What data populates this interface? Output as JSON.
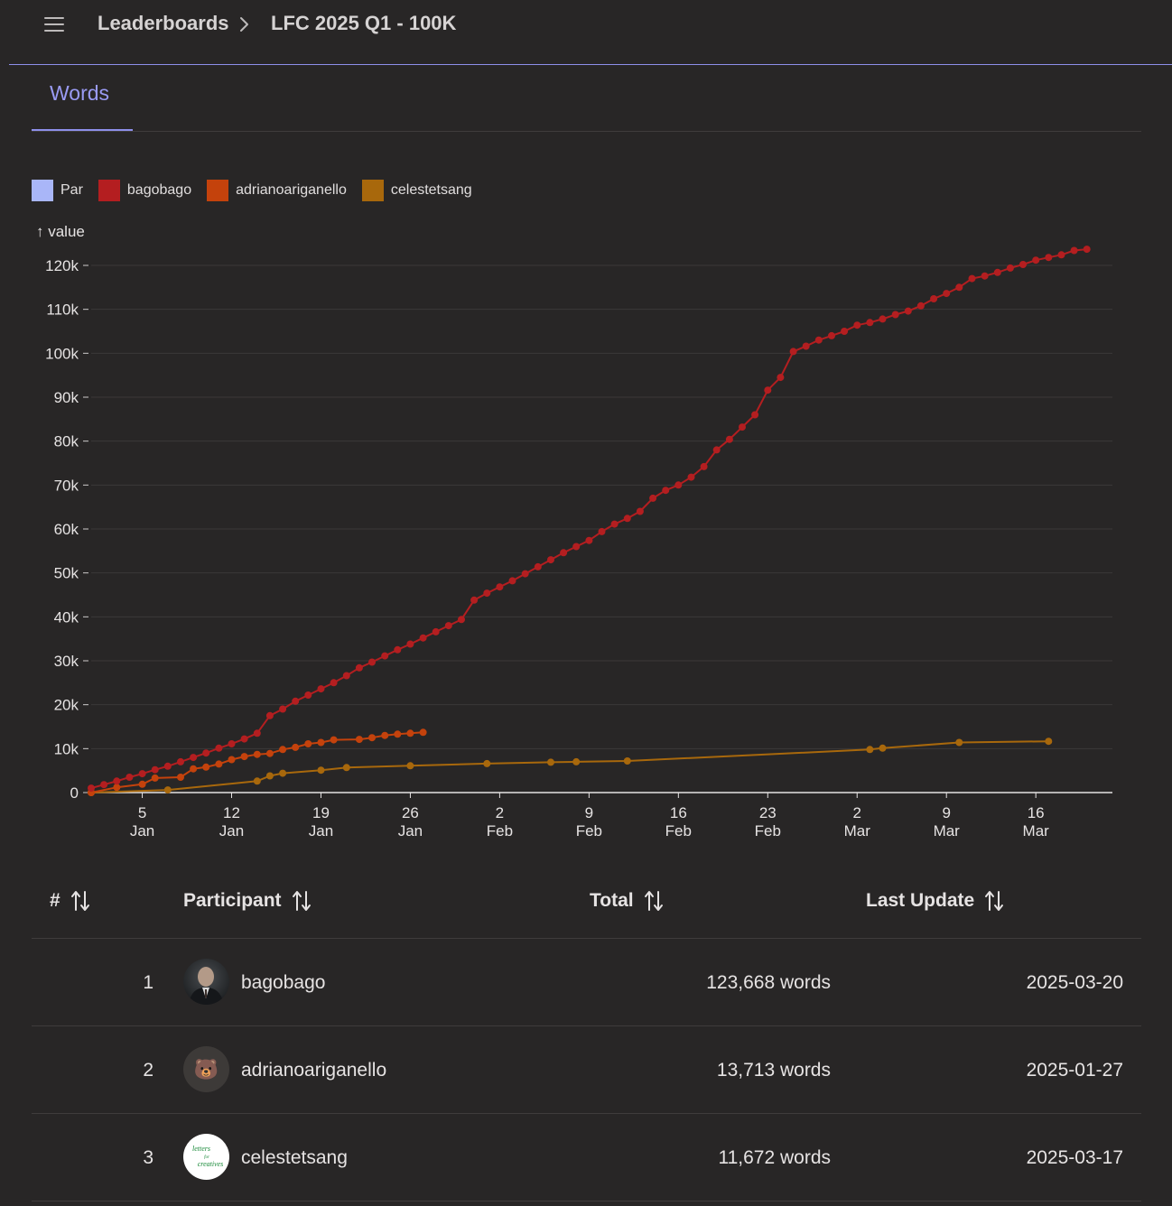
{
  "breadcrumb": {
    "root": "Leaderboards",
    "current": "LFC 2025 Q1 - 100K"
  },
  "tabs": [
    {
      "label": "Words",
      "active": true
    }
  ],
  "colors": {
    "accent": "#8e8fea",
    "par": "#a9b6f8",
    "bagobago": "#b41e20",
    "adrianoariganello": "#c4420c",
    "celestetsang": "#a8680c"
  },
  "legend": [
    {
      "label": "Par",
      "color": "#a9b6f8"
    },
    {
      "label": "bagobago",
      "color": "#b41e20"
    },
    {
      "label": "adrianoariganello",
      "color": "#c4420c"
    },
    {
      "label": "celestetsang",
      "color": "#a8680c"
    }
  ],
  "chart_data": {
    "type": "line",
    "ylabel": "↑ value",
    "ylim": [
      0,
      120000
    ],
    "yticks": [
      0,
      10000,
      20000,
      30000,
      40000,
      50000,
      60000,
      70000,
      80000,
      90000,
      100000,
      110000,
      120000
    ],
    "ytick_labels": [
      "0",
      "10k",
      "20k",
      "30k",
      "40k",
      "50k",
      "60k",
      "70k",
      "80k",
      "90k",
      "100k",
      "110k",
      "120k"
    ],
    "xlim": [
      "2025-01-01",
      "2025-03-22"
    ],
    "xticks": [
      {
        "date": "2025-01-05",
        "day": "5",
        "month": "Jan"
      },
      {
        "date": "2025-01-12",
        "day": "12",
        "month": "Jan"
      },
      {
        "date": "2025-01-19",
        "day": "19",
        "month": "Jan"
      },
      {
        "date": "2025-01-26",
        "day": "26",
        "month": "Jan"
      },
      {
        "date": "2025-02-02",
        "day": "2",
        "month": "Feb"
      },
      {
        "date": "2025-02-09",
        "day": "9",
        "month": "Feb"
      },
      {
        "date": "2025-02-16",
        "day": "16",
        "month": "Feb"
      },
      {
        "date": "2025-02-23",
        "day": "23",
        "month": "Feb"
      },
      {
        "date": "2025-03-02",
        "day": "2",
        "month": "Mar"
      },
      {
        "date": "2025-03-09",
        "day": "9",
        "month": "Mar"
      },
      {
        "date": "2025-03-16",
        "day": "16",
        "month": "Mar"
      }
    ],
    "grid": true,
    "legend_position": "top-left",
    "series": [
      {
        "name": "bagobago",
        "color": "#b41e20",
        "points": [
          [
            "2025-01-01",
            1000
          ],
          [
            "2025-01-02",
            1800
          ],
          [
            "2025-01-03",
            2600
          ],
          [
            "2025-01-04",
            3500
          ],
          [
            "2025-01-05",
            4300
          ],
          [
            "2025-01-06",
            5200
          ],
          [
            "2025-01-07",
            6000
          ],
          [
            "2025-01-08",
            7000
          ],
          [
            "2025-01-09",
            8000
          ],
          [
            "2025-01-10",
            9000
          ],
          [
            "2025-01-11",
            10100
          ],
          [
            "2025-01-12",
            11100
          ],
          [
            "2025-01-13",
            12200
          ],
          [
            "2025-01-14",
            13500
          ],
          [
            "2025-01-15",
            17500
          ],
          [
            "2025-01-16",
            19000
          ],
          [
            "2025-01-17",
            20800
          ],
          [
            "2025-01-18",
            22200
          ],
          [
            "2025-01-19",
            23600
          ],
          [
            "2025-01-20",
            25000
          ],
          [
            "2025-01-21",
            26600
          ],
          [
            "2025-01-22",
            28400
          ],
          [
            "2025-01-23",
            29700
          ],
          [
            "2025-01-24",
            31100
          ],
          [
            "2025-01-25",
            32500
          ],
          [
            "2025-01-26",
            33800
          ],
          [
            "2025-01-27",
            35200
          ],
          [
            "2025-01-28",
            36600
          ],
          [
            "2025-01-29",
            38000
          ],
          [
            "2025-01-30",
            39400
          ],
          [
            "2025-01-31",
            43800
          ],
          [
            "2025-02-01",
            45400
          ],
          [
            "2025-02-02",
            46800
          ],
          [
            "2025-02-03",
            48200
          ],
          [
            "2025-02-04",
            49800
          ],
          [
            "2025-02-05",
            51400
          ],
          [
            "2025-02-06",
            53000
          ],
          [
            "2025-02-07",
            54600
          ],
          [
            "2025-02-08",
            56000
          ],
          [
            "2025-02-09",
            57400
          ],
          [
            "2025-02-10",
            59400
          ],
          [
            "2025-02-11",
            61100
          ],
          [
            "2025-02-12",
            62400
          ],
          [
            "2025-02-13",
            64000
          ],
          [
            "2025-02-14",
            67000
          ],
          [
            "2025-02-15",
            68800
          ],
          [
            "2025-02-16",
            70000
          ],
          [
            "2025-02-17",
            71800
          ],
          [
            "2025-02-18",
            74200
          ],
          [
            "2025-02-19",
            78000
          ],
          [
            "2025-02-20",
            80400
          ],
          [
            "2025-02-21",
            83200
          ],
          [
            "2025-02-22",
            86000
          ],
          [
            "2025-02-23",
            91600
          ],
          [
            "2025-02-24",
            94500
          ],
          [
            "2025-02-25",
            100400
          ],
          [
            "2025-02-26",
            101600
          ],
          [
            "2025-02-27",
            103000
          ],
          [
            "2025-02-28",
            104000
          ],
          [
            "2025-03-01",
            105000
          ],
          [
            "2025-03-02",
            106400
          ],
          [
            "2025-03-03",
            107000
          ],
          [
            "2025-03-04",
            107800
          ],
          [
            "2025-03-05",
            108800
          ],
          [
            "2025-03-06",
            109600
          ],
          [
            "2025-03-07",
            110800
          ],
          [
            "2025-03-08",
            112400
          ],
          [
            "2025-03-09",
            113600
          ],
          [
            "2025-03-10",
            115000
          ],
          [
            "2025-03-11",
            117000
          ],
          [
            "2025-03-12",
            117600
          ],
          [
            "2025-03-13",
            118400
          ],
          [
            "2025-03-14",
            119400
          ],
          [
            "2025-03-15",
            120200
          ],
          [
            "2025-03-16",
            121200
          ],
          [
            "2025-03-17",
            121800
          ],
          [
            "2025-03-18",
            122400
          ],
          [
            "2025-03-19",
            123400
          ],
          [
            "2025-03-20",
            123668
          ]
        ]
      },
      {
        "name": "adrianoariganello",
        "color": "#c4420c",
        "points": [
          [
            "2025-01-01",
            0
          ],
          [
            "2025-01-03",
            1200
          ],
          [
            "2025-01-05",
            1900
          ],
          [
            "2025-01-06",
            3300
          ],
          [
            "2025-01-08",
            3500
          ],
          [
            "2025-01-09",
            5400
          ],
          [
            "2025-01-10",
            5800
          ],
          [
            "2025-01-11",
            6500
          ],
          [
            "2025-01-12",
            7500
          ],
          [
            "2025-01-13",
            8200
          ],
          [
            "2025-01-14",
            8700
          ],
          [
            "2025-01-15",
            8900
          ],
          [
            "2025-01-16",
            9800
          ],
          [
            "2025-01-17",
            10300
          ],
          [
            "2025-01-18",
            11100
          ],
          [
            "2025-01-19",
            11400
          ],
          [
            "2025-01-20",
            12000
          ],
          [
            "2025-01-22",
            12100
          ],
          [
            "2025-01-23",
            12500
          ],
          [
            "2025-01-24",
            13000
          ],
          [
            "2025-01-25",
            13300
          ],
          [
            "2025-01-26",
            13500
          ],
          [
            "2025-01-27",
            13713
          ]
        ]
      },
      {
        "name": "celestetsang",
        "color": "#a8680c",
        "points": [
          [
            "2025-01-01",
            0
          ],
          [
            "2025-01-07",
            600
          ],
          [
            "2025-01-14",
            2600
          ],
          [
            "2025-01-15",
            3800
          ],
          [
            "2025-01-16",
            4400
          ],
          [
            "2025-01-19",
            5100
          ],
          [
            "2025-01-21",
            5700
          ],
          [
            "2025-01-26",
            6100
          ],
          [
            "2025-02-01",
            6600
          ],
          [
            "2025-02-06",
            6900
          ],
          [
            "2025-02-08",
            7000
          ],
          [
            "2025-02-12",
            7200
          ],
          [
            "2025-03-03",
            9800
          ],
          [
            "2025-03-04",
            10100
          ],
          [
            "2025-03-10",
            11400
          ],
          [
            "2025-03-17",
            11672
          ]
        ]
      }
    ]
  },
  "table": {
    "columns": [
      "#",
      "Participant",
      "Total",
      "Last Update"
    ],
    "rows": [
      {
        "rank": "1",
        "participant": "bagobago",
        "total": "123,668 words",
        "last_update": "2025-03-20"
      },
      {
        "rank": "2",
        "participant": "adrianoariganello",
        "total": "13,713 words",
        "last_update": "2025-01-27"
      },
      {
        "rank": "3",
        "participant": "celestetsang",
        "total": "11,672 words",
        "last_update": "2025-03-17"
      }
    ]
  },
  "avatars": {
    "bear_emoji": "🐻",
    "logo_text_1": "letters",
    "logo_text_2": "for",
    "logo_text_3": "creatives"
  }
}
